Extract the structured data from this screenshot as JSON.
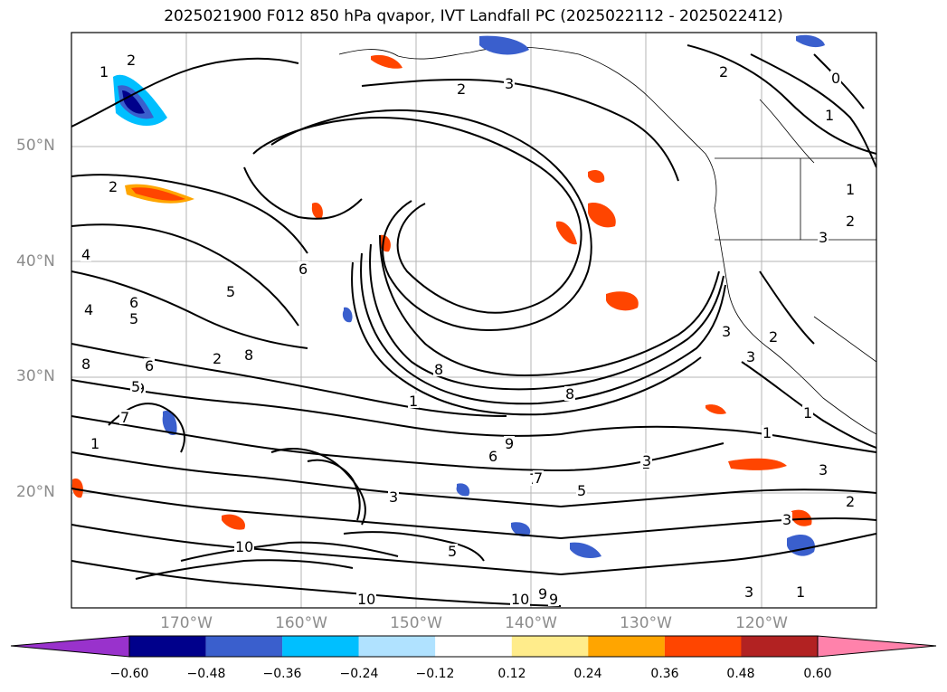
{
  "title": "2025021900 F012 850 hPa qvapor, IVT Landfall PC (2025022112 - 2025022412)",
  "lat_labels": [
    "50°N",
    "40°N",
    "30°N",
    "20°N"
  ],
  "lon_labels": [
    "170°W",
    "160°W",
    "150°W",
    "140°W",
    "130°W",
    "120°W"
  ],
  "colorbar": {
    "ticks": [
      "−0.60",
      "−0.48",
      "−0.36",
      "−0.24",
      "−0.12",
      "0.12",
      "0.24",
      "0.36",
      "0.48",
      "0.60"
    ],
    "colors": [
      "#9932cc",
      "#00008b",
      "#3a5fcd",
      "#00bfff",
      "#b0e2ff",
      "#ffffff",
      "#ffec8b",
      "#ffa500",
      "#ff4500",
      "#b22222",
      "#ff82ab"
    ]
  },
  "contour_labels": [
    "1",
    "2",
    "3",
    "2",
    "2",
    "0",
    "1",
    "2",
    "1",
    "6",
    "5",
    "4",
    "4",
    "6",
    "5",
    "2",
    "8",
    "8",
    "9",
    "6",
    "7",
    "8",
    "5",
    "1",
    "6",
    "9",
    "1",
    "3",
    "2",
    "1",
    "1",
    "8",
    "3",
    "1",
    "3",
    "7",
    "3",
    "2",
    "3",
    "3",
    "3",
    "2",
    "5",
    "10",
    "10",
    "9",
    "7",
    "5",
    "9",
    "1",
    "10",
    "3"
  ]
}
